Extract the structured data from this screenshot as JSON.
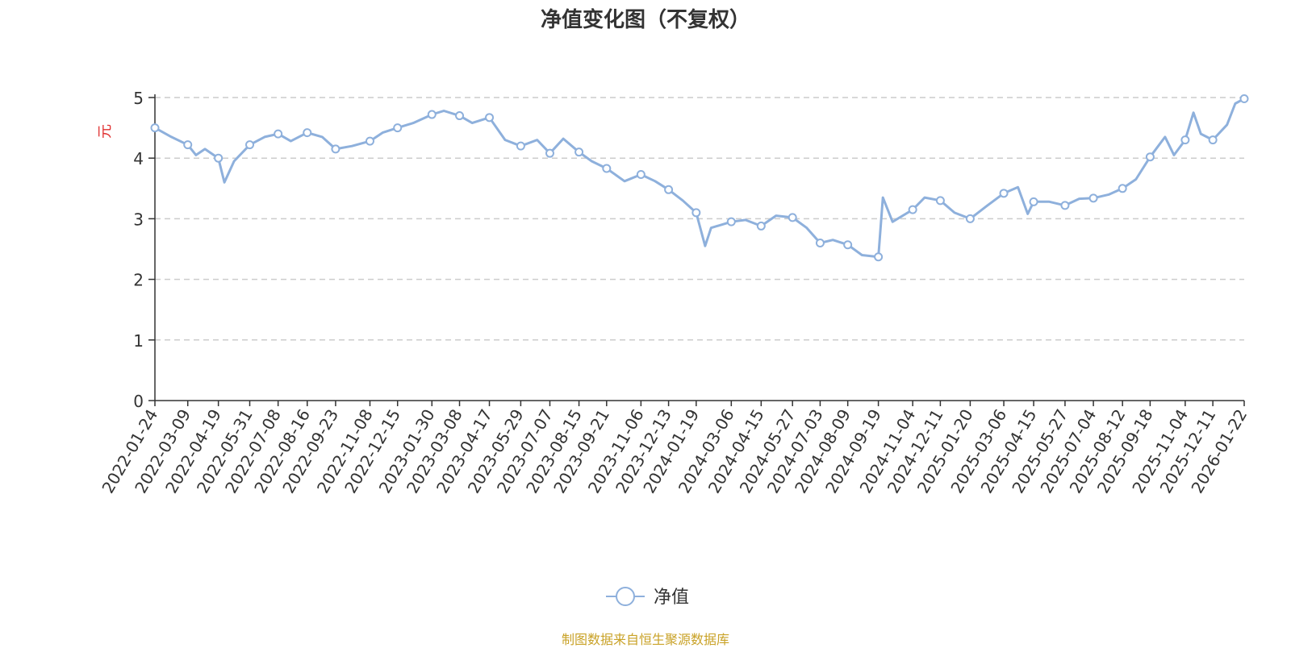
{
  "title": "净值变化图（不复权）",
  "ylabel": "元",
  "legend_label": "净值",
  "source": "制图数据来自恒生聚源数据库",
  "colors": {
    "line": "#8eb0dc",
    "grid": "#cccccc",
    "axis": "#333333",
    "ylabel": "#e03030",
    "source": "#c9a227"
  },
  "chart_data": {
    "type": "line",
    "title": "净值变化图（不复权）",
    "ylabel": "元",
    "ylim": [
      0,
      5
    ],
    "yticks": [
      0,
      1,
      2,
      3,
      4,
      5
    ],
    "grid": true,
    "legend": "bottom-center",
    "xticks": [
      "2022-01-24",
      "2022-03-09",
      "2022-04-19",
      "2022-05-31",
      "2022-07-08",
      "2022-08-16",
      "2022-09-23",
      "2022-11-08",
      "2022-12-15",
      "2023-01-30",
      "2023-03-08",
      "2023-04-17",
      "2023-05-29",
      "2023-07-07",
      "2023-08-15",
      "2023-09-21",
      "2023-11-06",
      "2023-12-13",
      "2024-01-19",
      "2024-03-06",
      "2024-04-15",
      "2024-05-27",
      "2024-07-03",
      "2024-08-09",
      "2024-09-19",
      "2024-11-04",
      "2024-12-11",
      "2025-01-20",
      "2025-03-06",
      "2025-04-15",
      "2025-05-27",
      "2025-07-04",
      "2025-08-12",
      "2025-09-18",
      "2025-11-04",
      "2025-12-11",
      "2026-01-22"
    ],
    "series": [
      {
        "name": "净值",
        "x": [
          "2022-01-24",
          "2022-02-15",
          "2022-03-09",
          "2022-03-20",
          "2022-04-01",
          "2022-04-19",
          "2022-04-27",
          "2022-05-10",
          "2022-05-31",
          "2022-06-20",
          "2022-07-08",
          "2022-07-25",
          "2022-08-16",
          "2022-09-05",
          "2022-09-23",
          "2022-10-15",
          "2022-11-08",
          "2022-11-25",
          "2022-12-15",
          "2023-01-05",
          "2023-01-30",
          "2023-02-15",
          "2023-03-08",
          "2023-03-25",
          "2023-04-17",
          "2023-05-08",
          "2023-05-29",
          "2023-06-20",
          "2023-07-07",
          "2023-07-25",
          "2023-08-15",
          "2023-09-01",
          "2023-09-21",
          "2023-10-15",
          "2023-11-06",
          "2023-11-25",
          "2023-12-13",
          "2024-01-01",
          "2024-01-19",
          "2024-01-31",
          "2024-02-08",
          "2024-03-06",
          "2024-03-25",
          "2024-04-15",
          "2024-05-05",
          "2024-05-27",
          "2024-06-15",
          "2024-07-03",
          "2024-07-20",
          "2024-08-09",
          "2024-08-28",
          "2024-09-19",
          "2024-09-25",
          "2024-10-08",
          "2024-11-04",
          "2024-11-20",
          "2024-12-11",
          "2024-12-30",
          "2025-01-20",
          "2025-02-10",
          "2025-03-06",
          "2025-03-25",
          "2025-04-07",
          "2025-04-15",
          "2025-05-06",
          "2025-05-27",
          "2025-06-15",
          "2025-07-04",
          "2025-07-25",
          "2025-08-12",
          "2025-08-30",
          "2025-09-18",
          "2025-10-08",
          "2025-10-20",
          "2025-11-04",
          "2025-11-15",
          "2025-11-25",
          "2025-12-11",
          "2025-12-30",
          "2026-01-10",
          "2026-01-22"
        ],
        "values": [
          4.5,
          4.35,
          4.22,
          4.05,
          4.15,
          4.0,
          3.6,
          3.95,
          4.22,
          4.35,
          4.4,
          4.28,
          4.42,
          4.35,
          4.15,
          4.2,
          4.28,
          4.42,
          4.5,
          4.58,
          4.72,
          4.78,
          4.7,
          4.58,
          4.67,
          4.3,
          4.2,
          4.3,
          4.08,
          4.32,
          4.1,
          3.95,
          3.83,
          3.62,
          3.73,
          3.62,
          3.48,
          3.3,
          3.1,
          2.55,
          2.85,
          2.95,
          2.98,
          2.88,
          3.05,
          3.02,
          2.85,
          2.6,
          2.65,
          2.57,
          2.4,
          2.37,
          3.35,
          2.95,
          3.15,
          3.35,
          3.3,
          3.1,
          3.0,
          3.2,
          3.42,
          3.52,
          3.08,
          3.28,
          3.28,
          3.22,
          3.33,
          3.34,
          3.4,
          3.5,
          3.65,
          4.02,
          4.35,
          4.05,
          4.3,
          4.75,
          4.4,
          4.3,
          4.55,
          4.9,
          4.98
        ]
      }
    ],
    "markers": [
      "2022-01-24",
      "2022-03-09",
      "2022-04-19",
      "2022-05-31",
      "2022-07-08",
      "2022-08-16",
      "2022-09-23",
      "2022-11-08",
      "2022-12-15",
      "2023-01-30",
      "2023-03-08",
      "2023-04-17",
      "2023-05-29",
      "2023-07-07",
      "2023-08-15",
      "2023-09-21",
      "2023-11-06",
      "2023-12-13",
      "2024-01-19",
      "2024-03-06",
      "2024-04-15",
      "2024-05-27",
      "2024-07-03",
      "2024-08-09",
      "2024-09-19",
      "2024-11-04",
      "2024-12-11",
      "2025-01-20",
      "2025-03-06",
      "2025-04-15",
      "2025-05-27",
      "2025-07-04",
      "2025-08-12",
      "2025-09-18",
      "2025-11-04",
      "2025-12-11",
      "2026-01-22"
    ]
  }
}
